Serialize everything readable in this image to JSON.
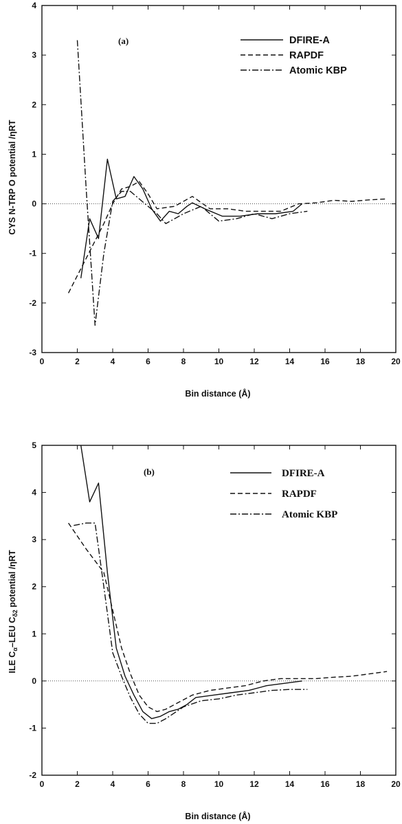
{
  "chart_data": [
    {
      "type": "line",
      "panel_label": "(a)",
      "xlabel": "Bin distance (Å)",
      "ylabel": "CYS N-TRP O potential /ηRT",
      "xlim": [
        0,
        20
      ],
      "ylim": [
        -3,
        4
      ],
      "xticks": [
        "0",
        "2",
        "4",
        "6",
        "8",
        "10",
        "12",
        "14",
        "16",
        "18",
        "20"
      ],
      "yticks": [
        "-3",
        "-2",
        "-1",
        "0",
        "1",
        "2",
        "3",
        "4"
      ],
      "zero_line": true,
      "legend_position": "top-right",
      "series": [
        {
          "name": "DFIRE-A",
          "style": "solid",
          "x": [
            2.2,
            2.7,
            3.2,
            3.7,
            4.2,
            4.7,
            5.2,
            5.7,
            6.2,
            6.7,
            7.2,
            7.7,
            8.2,
            8.5,
            9.2,
            10.2,
            11.2,
            12.2,
            13.2,
            14.2,
            14.7
          ],
          "y": [
            -1.5,
            -0.3,
            -0.7,
            0.9,
            0.1,
            0.15,
            0.55,
            0.3,
            -0.1,
            -0.35,
            -0.15,
            -0.2,
            -0.05,
            0.02,
            -0.1,
            -0.25,
            -0.25,
            -0.2,
            -0.2,
            -0.15,
            0.0
          ]
        },
        {
          "name": "RAPDF",
          "style": "dashed",
          "x": [
            1.5,
            2.5,
            3.5,
            4.0,
            4.5,
            5.0,
            5.5,
            6.0,
            6.5,
            7.5,
            8.5,
            9.5,
            10.5,
            11.5,
            12.5,
            13.5,
            14.5,
            15.5,
            16.5,
            17.5,
            18.5,
            19.5
          ],
          "y": [
            -1.8,
            -1.1,
            -0.4,
            0.0,
            0.3,
            0.35,
            0.45,
            0.2,
            -0.1,
            -0.05,
            0.15,
            -0.1,
            -0.1,
            -0.15,
            -0.15,
            -0.15,
            0.0,
            0.02,
            0.07,
            0.05,
            0.08,
            0.1
          ]
        },
        {
          "name": "Atomic KBP",
          "style": "dash-dot",
          "x": [
            2.0,
            2.5,
            3.0,
            3.5,
            4.0,
            4.5,
            5.0,
            5.5,
            6.0,
            6.5,
            7.0,
            8.0,
            9.0,
            10.0,
            11.0,
            12.0,
            13.0,
            14.0,
            15.0
          ],
          "y": [
            3.3,
            0.3,
            -2.45,
            -1.0,
            0.05,
            0.25,
            0.25,
            0.1,
            -0.05,
            -0.2,
            -0.4,
            -0.2,
            -0.05,
            -0.35,
            -0.3,
            -0.2,
            -0.3,
            -0.2,
            -0.15
          ]
        }
      ]
    },
    {
      "type": "line",
      "panel_label": "(b)",
      "xlabel": "Bin distance (Å)",
      "ylabel": "ILE Cα–LEU Cδ2 potential /ηRT",
      "xlim": [
        0,
        20
      ],
      "ylim": [
        -2,
        5
      ],
      "xticks": [
        "0",
        "2",
        "4",
        "6",
        "8",
        "10",
        "12",
        "14",
        "16",
        "18",
        "20"
      ],
      "yticks": [
        "-2",
        "-1",
        "0",
        "1",
        "2",
        "3",
        "4",
        "5"
      ],
      "zero_line": true,
      "legend_position": "top-right",
      "series": [
        {
          "name": "DFIRE-A",
          "style": "solid",
          "x": [
            2.2,
            2.7,
            3.2,
            3.7,
            4.2,
            4.7,
            5.2,
            5.7,
            6.2,
            6.7,
            7.2,
            7.7,
            8.2,
            8.7,
            9.7,
            10.7,
            11.7,
            12.7,
            13.7,
            14.7
          ],
          "y": [
            5.0,
            3.8,
            4.2,
            2.3,
            0.7,
            0.1,
            -0.3,
            -0.65,
            -0.8,
            -0.75,
            -0.65,
            -0.6,
            -0.5,
            -0.35,
            -0.3,
            -0.25,
            -0.2,
            -0.1,
            -0.05,
            0.0
          ]
        },
        {
          "name": "RAPDF",
          "style": "dashed",
          "x": [
            1.5,
            2.5,
            3.5,
            4.0,
            4.5,
            5.0,
            5.5,
            6.0,
            6.5,
            7.0,
            7.5,
            8.5,
            9.5,
            10.5,
            11.5,
            12.5,
            13.5,
            14.5,
            15.5,
            16.5,
            17.5,
            18.5,
            19.5
          ],
          "y": [
            3.35,
            2.8,
            2.3,
            1.5,
            0.7,
            0.15,
            -0.3,
            -0.55,
            -0.65,
            -0.6,
            -0.5,
            -0.3,
            -0.2,
            -0.15,
            -0.1,
            0.0,
            0.05,
            0.05,
            0.05,
            0.08,
            0.1,
            0.15,
            0.2
          ]
        },
        {
          "name": "Atomic KBP",
          "style": "dash-dot",
          "x": [
            1.8,
            2.5,
            3.0,
            3.5,
            4.0,
            4.5,
            5.0,
            5.5,
            6.0,
            6.5,
            7.0,
            8.0,
            9.0,
            10.0,
            11.0,
            12.0,
            13.0,
            14.0,
            15.0
          ],
          "y": [
            3.3,
            3.35,
            3.35,
            2.0,
            0.6,
            0.1,
            -0.35,
            -0.7,
            -0.9,
            -0.9,
            -0.8,
            -0.55,
            -0.42,
            -0.38,
            -0.3,
            -0.25,
            -0.2,
            -0.18,
            -0.18
          ]
        }
      ]
    }
  ]
}
